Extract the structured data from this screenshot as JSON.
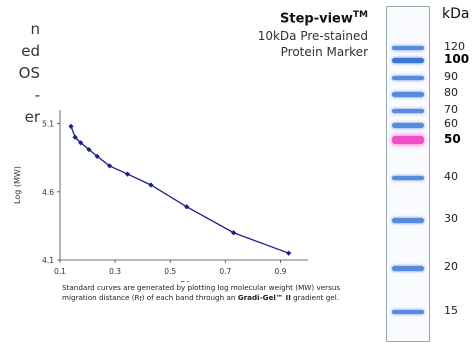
{
  "left_text": [
    "n",
    "ed",
    "OS",
    "-",
    "",
    "er"
  ],
  "product": {
    "name": "Step-view",
    "tm": "TM",
    "subtitle_line1": "10kDa Pre-stained",
    "subtitle_line2": "Protein Marker"
  },
  "caption": {
    "part1": "Standard curves are generated by plotting log molecular weight (MW) versus migration distance (R",
    "sub": "f",
    "part2": ") of each band through an ",
    "bold": "Gradi-Gel™ II",
    "part3": " gradient gel."
  },
  "chart_data": {
    "type": "line",
    "title": "",
    "xlabel": "Rf",
    "ylabel": "Log (MW)",
    "xlim": [
      0.1,
      1.0
    ],
    "ylim": [
      4.1,
      5.2
    ],
    "xticks": [
      "0.1",
      "0.3",
      "0.5",
      "0.7",
      "0.9"
    ],
    "yticks": [
      "4.1",
      "4.6",
      "5.1"
    ],
    "color": "#1a1f8c",
    "points": [
      {
        "x": 0.14,
        "y": 5.08
      },
      {
        "x": 0.155,
        "y": 5.0
      },
      {
        "x": 0.175,
        "y": 4.96
      },
      {
        "x": 0.205,
        "y": 4.91
      },
      {
        "x": 0.235,
        "y": 4.86
      },
      {
        "x": 0.28,
        "y": 4.79
      },
      {
        "x": 0.345,
        "y": 4.73
      },
      {
        "x": 0.43,
        "y": 4.65
      },
      {
        "x": 0.56,
        "y": 4.49
      },
      {
        "x": 0.73,
        "y": 4.3
      },
      {
        "x": 0.93,
        "y": 4.15
      }
    ]
  },
  "gel": {
    "unit_label": "kDa",
    "markers": [
      {
        "label": "120",
        "bold": false
      },
      {
        "label": "100",
        "bold": true
      },
      {
        "label": "90",
        "bold": false
      },
      {
        "label": "80",
        "bold": false
      },
      {
        "label": "70",
        "bold": false
      },
      {
        "label": "60",
        "bold": false
      },
      {
        "label": "50",
        "bold": true
      },
      {
        "label": "40",
        "bold": false
      },
      {
        "label": "30",
        "bold": false
      },
      {
        "label": "20",
        "bold": false
      },
      {
        "label": "15",
        "bold": false
      }
    ],
    "band_colors": {
      "blue": "#3a78d8",
      "pink": "#f04ec8"
    }
  }
}
